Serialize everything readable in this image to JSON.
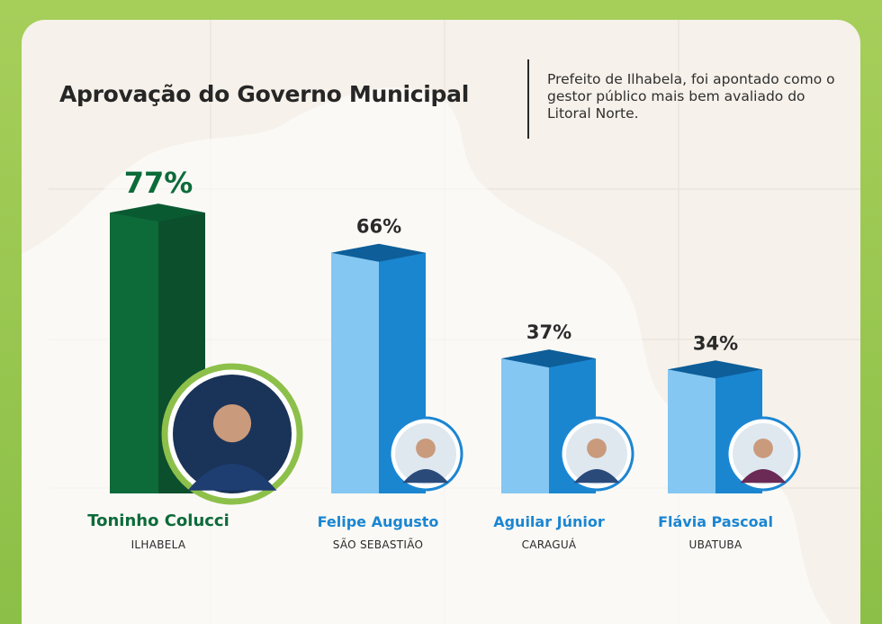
{
  "header": {
    "title": "Aprovação do Governo Municipal",
    "subtitle": "Prefeito de Ilhabela, foi apontado como o gestor público mais bem avaliado do Litoral Norte."
  },
  "colors": {
    "winner": "#0d6b3a",
    "winner_dark": "#0b4f2c",
    "other_front": "#84c7f2",
    "other_side": "#1a86cf",
    "other_top": "#0d5e99",
    "label_blue": "#1b86d2"
  },
  "candidates": [
    {
      "name": "Toninho Colucci",
      "city": "ILHABELA",
      "value_label": "77%"
    },
    {
      "name": "Felipe Augusto",
      "city": "SÃO SEBASTIÃO",
      "value_label": "66%"
    },
    {
      "name": "Aguilar Júnior",
      "city": "CARAGUÁ",
      "value_label": "37%"
    },
    {
      "name": "Flávia Pascoal",
      "city": "UBATUBA",
      "value_label": "34%"
    }
  ],
  "chart_data": {
    "type": "bar",
    "title": "Aprovação do Governo Municipal",
    "categories": [
      "Toninho Colucci",
      "Felipe Augusto",
      "Aguilar Júnior",
      "Flávia Pascoal"
    ],
    "values": [
      77,
      66,
      37,
      34
    ],
    "unit": "%",
    "ylim": [
      0,
      100
    ],
    "grid": false,
    "legend": "none"
  }
}
